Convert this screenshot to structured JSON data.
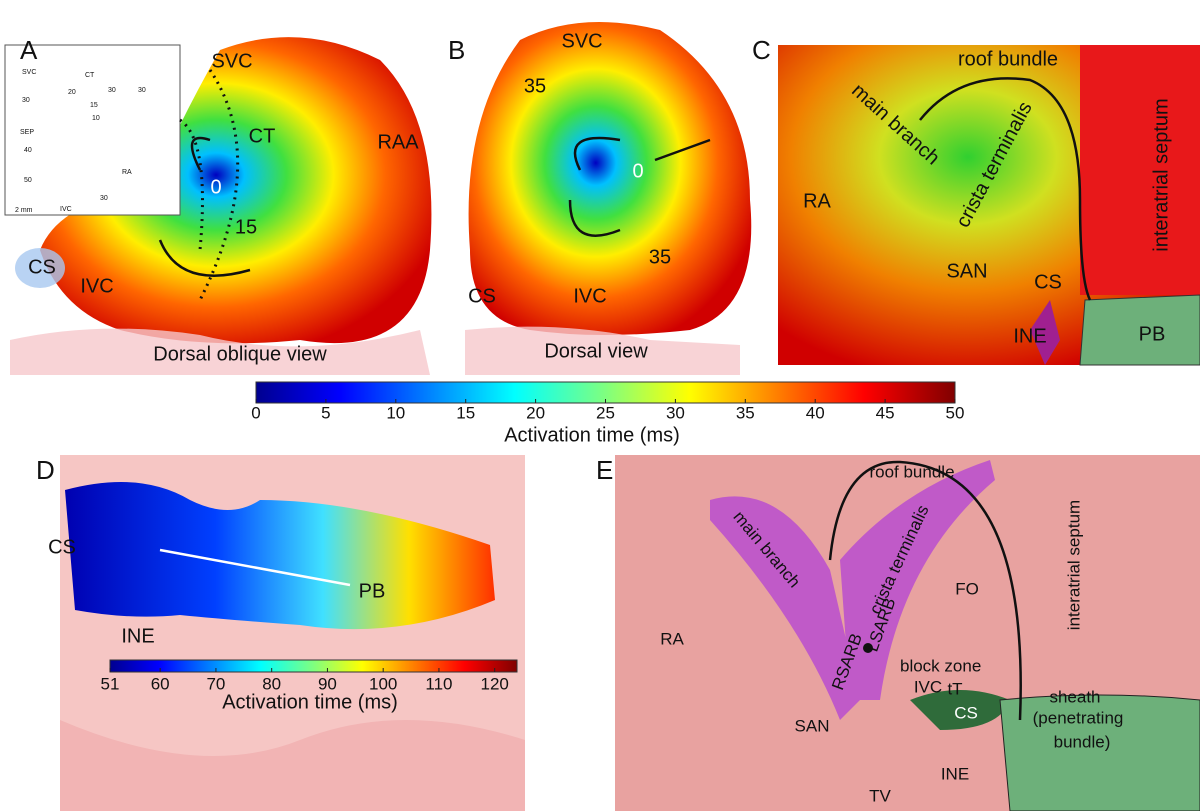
{
  "panel_a": {
    "letter": "A",
    "labels": [
      "SVC",
      "CT",
      "RAA",
      "0",
      "15",
      "CS",
      "IVC"
    ],
    "caption": "Dorsal oblique view",
    "inset_labels": [
      "SVC",
      "CT",
      "SEP",
      "RA",
      "IVC",
      "2 mm",
      "30",
      "40",
      "50",
      "20",
      "15",
      "10",
      "30",
      "30",
      "30"
    ]
  },
  "panel_b": {
    "letter": "B",
    "labels": [
      "SVC",
      "35",
      "0",
      "35",
      "CS",
      "IVC"
    ],
    "caption": "Dorsal view"
  },
  "panel_c": {
    "letter": "C",
    "labels": [
      "roof bundle",
      "main branch",
      "crista terminalis",
      "interatrial septum",
      "RA",
      "SAN",
      "CS",
      "INE",
      "PB"
    ]
  },
  "colorbar_top": {
    "range": [
      0,
      50
    ],
    "ticks": [
      0,
      5,
      10,
      15,
      20,
      25,
      30,
      35,
      40,
      45,
      50
    ],
    "title": "Activation time (ms)"
  },
  "panel_d": {
    "letter": "D",
    "labels": [
      "CS",
      "PB",
      "INE"
    ]
  },
  "colorbar_bottom": {
    "range": [
      51,
      124
    ],
    "ticks": [
      51,
      60,
      70,
      80,
      90,
      100,
      110,
      120
    ],
    "title": "Activation time (ms)"
  },
  "panel_e": {
    "letter": "E",
    "labels": [
      "roof bundle",
      "interatrial septum",
      "main branch",
      "crista terminalis",
      "LSARB",
      "FO",
      "RA",
      "RSARB",
      "block zone",
      "IVC",
      "tT",
      "CS",
      "SAN",
      "sheath",
      "(penetrating",
      "bundle)",
      "INE",
      "TV"
    ]
  }
}
